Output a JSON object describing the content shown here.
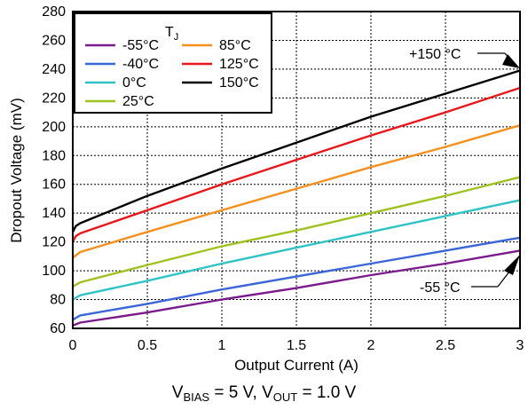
{
  "chart_data": {
    "type": "line",
    "xlabel": "Output Current (A)",
    "ylabel": "Dropout Voltage (mV)",
    "xlim": [
      0,
      3
    ],
    "ylim": [
      60,
      280
    ],
    "x_ticks": [
      "0",
      "0.5",
      "1",
      "1.5",
      "2",
      "2.5",
      "3"
    ],
    "y_ticks": [
      "60",
      "80",
      "100",
      "120",
      "140",
      "160",
      "180",
      "200",
      "220",
      "240",
      "260",
      "280"
    ],
    "grid": true,
    "legend": {
      "title_main": "T",
      "title_sub": "J",
      "placement": "top-left"
    },
    "series": [
      {
        "name": "-55°C",
        "color": "#7b1a8c",
        "x": [
          0,
          0.05,
          0.5,
          1,
          1.5,
          2,
          2.5,
          3
        ],
        "y": [
          62,
          64,
          71,
          80,
          88,
          97,
          105,
          114
        ]
      },
      {
        "name": "-40°C",
        "color": "#3a66d8",
        "x": [
          0,
          0.05,
          0.5,
          1,
          1.5,
          2,
          2.5,
          3
        ],
        "y": [
          66,
          69,
          77,
          87,
          96,
          105,
          114,
          123
        ]
      },
      {
        "name": "0°C",
        "color": "#2ec4c6",
        "x": [
          0,
          0.05,
          0.5,
          1,
          1.5,
          2,
          2.5,
          3
        ],
        "y": [
          80,
          83,
          93,
          105,
          116,
          127,
          138,
          149
        ]
      },
      {
        "name": "25°C",
        "color": "#9ec21f",
        "x": [
          0,
          0.05,
          0.5,
          1,
          1.5,
          2,
          2.5,
          3
        ],
        "y": [
          89,
          92,
          104,
          117,
          128,
          140,
          152,
          165
        ]
      },
      {
        "name": "85°C",
        "color": "#f5901e",
        "x": [
          0,
          0.05,
          0.5,
          1,
          1.5,
          2,
          2.5,
          3
        ],
        "y": [
          109,
          113,
          127,
          142,
          157,
          172,
          186,
          201
        ]
      },
      {
        "name": "125°C",
        "color": "#e8171b",
        "x": [
          0,
          0.02,
          0.05,
          0.5,
          1,
          1.5,
          2,
          2.5,
          3
        ],
        "y": [
          120,
          124,
          126,
          142,
          160,
          177,
          194,
          210,
          227
        ]
      },
      {
        "name": "150°C",
        "color": "#000000",
        "x": [
          0,
          0.02,
          0.05,
          0.5,
          1,
          1.5,
          2,
          2.5,
          3
        ],
        "y": [
          127,
          131,
          133,
          152,
          171,
          189,
          207,
          223,
          239
        ]
      }
    ],
    "annotations": [
      {
        "text": "+150 °C",
        "x": 3,
        "y": 239
      },
      {
        "text": "-55 °C",
        "x": 3,
        "y": 114
      }
    ],
    "subtitle": {
      "v_bias_main": "V",
      "v_bias_sub": "BIAS",
      "v_bias_value": " = 5 V, ",
      "v_out_main": "V",
      "v_out_sub": "OUT",
      "v_out_value": " = 1.0 V"
    }
  }
}
